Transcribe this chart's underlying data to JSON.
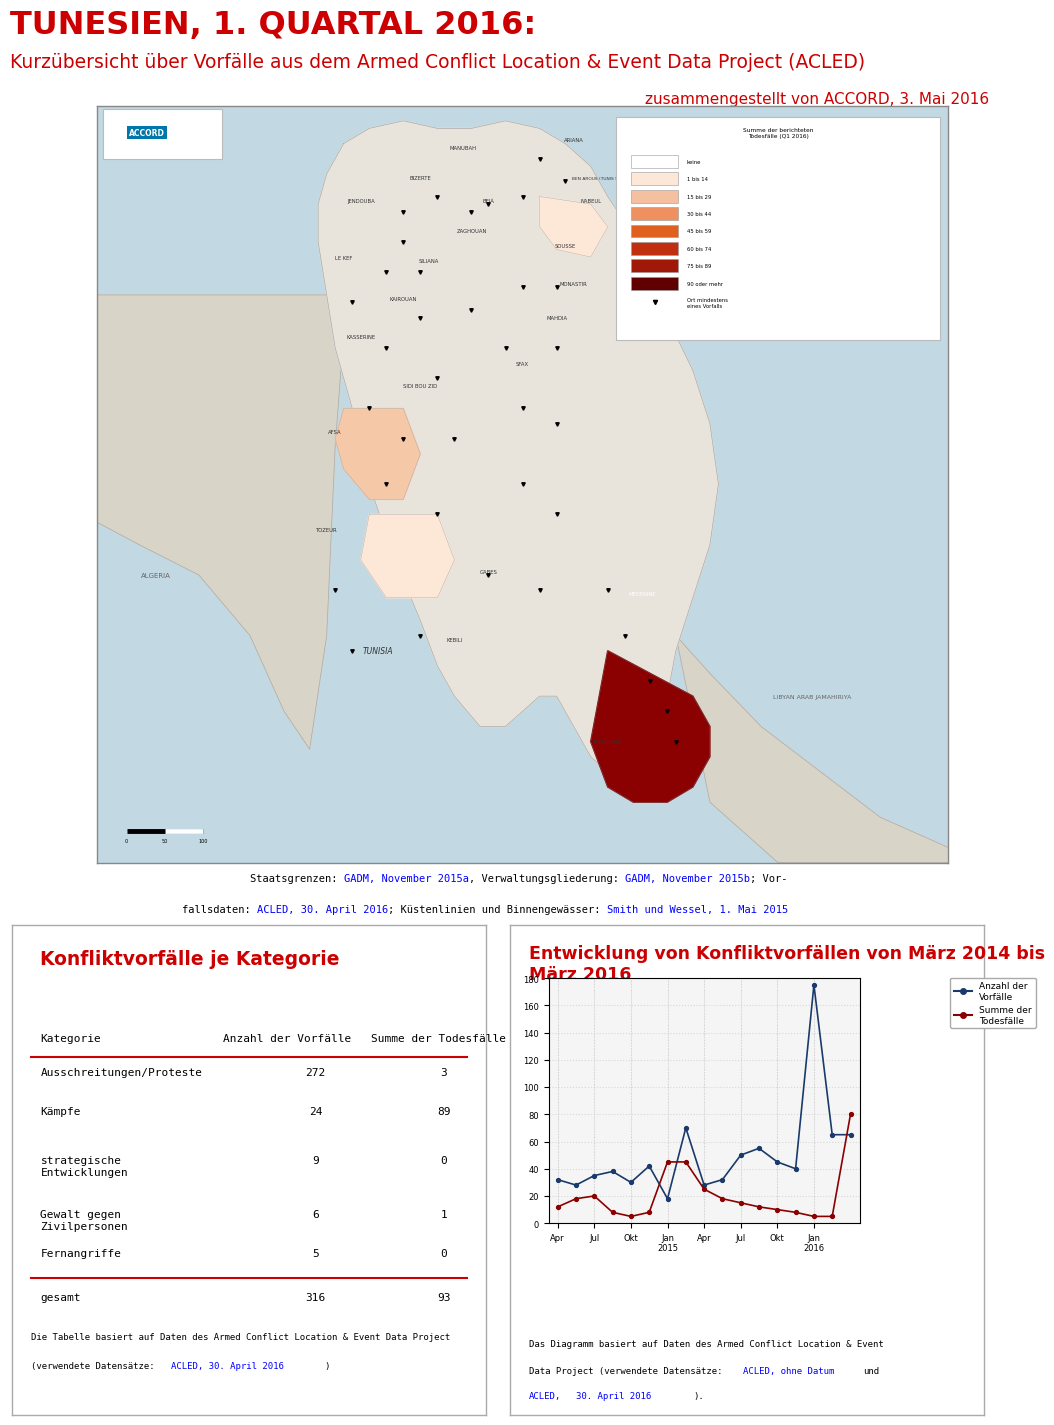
{
  "title_line1": "TUNESIEN, 1. QUARTAL 2016:",
  "title_line2": "Kurzübersicht über Vorfälle aus dem Armed Conflict Location & Event Data Project (ACLED)",
  "title_line3": "zusammengestellt von ACCORD, 3. Mai 2016",
  "title_color": "#cc0000",
  "background_color": "#ffffff",
  "table_title": "Konfliktvorfälle je Kategorie",
  "table_color": "#cc0000",
  "table_headers": [
    "Kategorie",
    "Anzahl der Vorfälle",
    "Summe der Todesfälle"
  ],
  "table_rows": [
    [
      "Ausschreitungen/Proteste",
      "272",
      "3"
    ],
    [
      "Kämpfe",
      "24",
      "89"
    ],
    [
      "strategische\nEntwicklungen",
      "9",
      "0"
    ],
    [
      "Gewalt gegen\nZivilpersonen",
      "6",
      "1"
    ],
    [
      "Fernangriffe",
      "5",
      "0"
    ]
  ],
  "table_total_row": [
    "gesamt",
    "316",
    "93"
  ],
  "chart_title": "Entwicklung von Konfliktvorfällen von März 2014 bis\nMärz 2016",
  "chart_color": "#cc0000",
  "chart_xlabel_ticks": [
    "Apr",
    "Jul",
    "Okt",
    "Jan\n2015",
    "Apr",
    "Jul",
    "Okt",
    "Jan\n2016"
  ],
  "incidents_data": [
    32,
    28,
    35,
    38,
    30,
    42,
    18,
    70,
    28,
    32,
    50,
    55,
    45,
    40,
    175,
    65,
    65
  ],
  "deaths_data": [
    12,
    18,
    20,
    8,
    5,
    8,
    45,
    45,
    25,
    18,
    15,
    12,
    10,
    8,
    5,
    5,
    80
  ],
  "incident_color": "#1a3a6b",
  "death_color": "#8b0000",
  "legend_incident": "Anzahl der\nVorfälle",
  "legend_death": "Summe der\nTodesfälle"
}
